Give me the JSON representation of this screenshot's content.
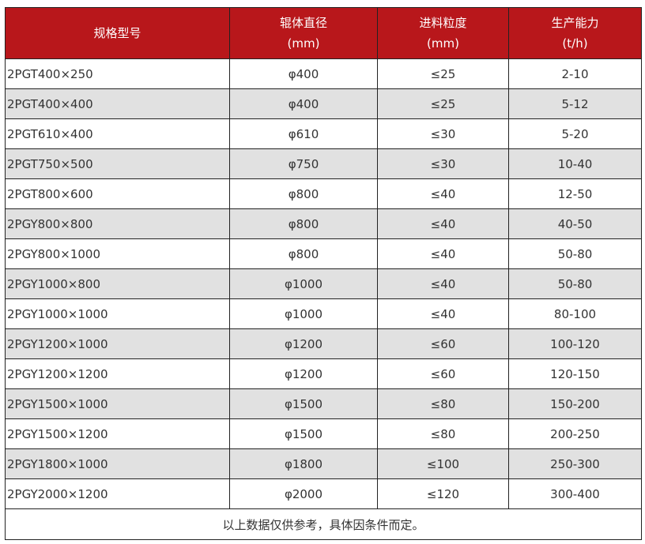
{
  "header": {
    "col1": "规格型号",
    "col2": "辊体直径",
    "col2_unit": "(mm)",
    "col3": "进料粒度",
    "col3_unit": "(mm)",
    "col4": "生产能力",
    "col4_unit": "(t/h)"
  },
  "colors": {
    "header_bg": "#b8171b",
    "alt_row": "#e1e1e1"
  },
  "rows": [
    [
      "2PGT400×250",
      "φ400",
      "≤25",
      "2-10"
    ],
    [
      "2PGT400×400",
      "φ400",
      "≤25",
      "5-12"
    ],
    [
      "2PGT610×400",
      "φ610",
      "≤30",
      "5-20"
    ],
    [
      "2PGT750×500",
      "φ750",
      "≤30",
      "10-40"
    ],
    [
      "2PGT800×600",
      "φ800",
      "≤40",
      "12-50"
    ],
    [
      "2PGY800×800",
      "φ800",
      "≤40",
      "40-50"
    ],
    [
      "2PGY800×1000",
      "φ800",
      "≤40",
      "50-80"
    ],
    [
      "2PGY1000×800",
      "φ1000",
      "≤40",
      "50-80"
    ],
    [
      "2PGY1000×1000",
      "φ1000",
      "≤40",
      "80-100"
    ],
    [
      "2PGY1200×1000",
      "φ1200",
      "≤60",
      "100-120"
    ],
    [
      "2PGY1200×1200",
      "φ1200",
      "≤60",
      "120-150"
    ],
    [
      "2PGY1500×1000",
      "φ1500",
      "≤80",
      "150-200"
    ],
    [
      "2PGY1500×1200",
      "φ1500",
      "≤80",
      "200-250"
    ],
    [
      "2PGY1800×1000",
      "φ1800",
      "≤100",
      "250-300"
    ],
    [
      "2PGY2000×1200",
      "φ2000",
      "≤120",
      "300-400"
    ]
  ],
  "footer": "以上数据仅供参考，具体因条件而定。"
}
